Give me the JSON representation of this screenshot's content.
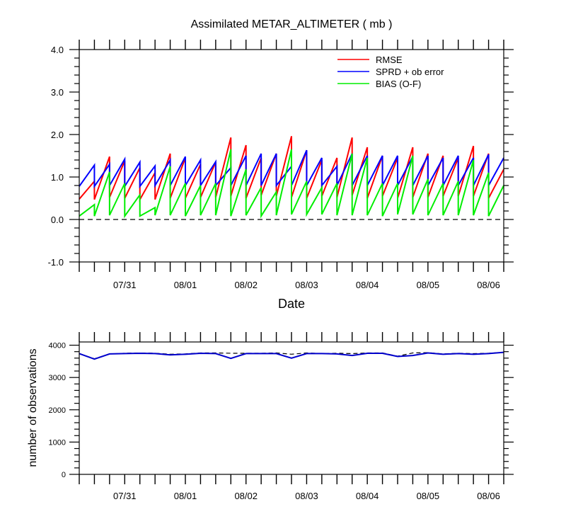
{
  "colors": {
    "rmse": "#ff0000",
    "sprd": "#0000ff",
    "bias": "#00ee00",
    "axis": "#000000",
    "dashed": "#000000",
    "obs_used": "#0000cc"
  },
  "chart_data": [
    {
      "type": "line",
      "title": "Assimilated METAR_ALTIMETER ( mb )",
      "xlabel": "Date",
      "ylabel": "",
      "ylim": [
        -1.0,
        4.0
      ],
      "yticks": [
        "-1.0",
        "0.0",
        "1.0",
        "2.0",
        "3.0",
        "4.0"
      ],
      "xticklabels": [
        "07/31",
        "08/01",
        "08/02",
        "08/03",
        "08/04",
        "08/05",
        "08/06"
      ],
      "x_start": "07/30 06Z",
      "x_step_hours": 6,
      "reference_line_y": 0.0,
      "legend_position": "top-right",
      "series": [
        {
          "name": "RMSE",
          "prior": [
            0.48,
            0.47,
            0.52,
            0.5,
            0.47,
            0.47,
            0.5,
            0.5,
            0.52,
            0.52,
            0.55,
            0.5,
            0.57,
            0.55,
            0.52,
            0.5,
            0.55,
            0.52,
            0.57,
            0.5,
            0.55,
            0.5,
            0.52,
            0.52,
            0.55,
            0.55,
            0.55,
            0.5
          ],
          "posterior": [
            0.9,
            1.48,
            1.38,
            1.22,
            1.1,
            1.55,
            1.45,
            1.3,
            1.35,
            1.93,
            1.75,
            1.45,
            1.55,
            1.96,
            1.63,
            1.4,
            1.45,
            1.93,
            1.7,
            1.5,
            1.45,
            1.7,
            1.55,
            1.5,
            1.45,
            1.73,
            1.55,
            1.18
          ]
        },
        {
          "name": "SPRD + ob error",
          "prior": [
            0.78,
            0.78,
            0.8,
            0.78,
            0.78,
            0.8,
            0.8,
            0.8,
            0.8,
            0.8,
            0.8,
            0.8,
            0.8,
            0.8,
            0.8,
            0.8,
            0.8,
            0.8,
            0.8,
            0.8,
            0.8,
            0.8,
            0.8,
            0.8,
            0.8,
            0.8,
            0.8,
            0.8
          ],
          "posterior": [
            1.28,
            1.3,
            1.42,
            1.35,
            1.26,
            1.4,
            1.48,
            1.4,
            1.36,
            1.22,
            1.5,
            1.55,
            1.55,
            1.25,
            1.63,
            1.45,
            1.25,
            1.55,
            1.5,
            1.5,
            1.5,
            1.48,
            1.5,
            1.45,
            1.5,
            1.45,
            1.53,
            1.45
          ]
        },
        {
          "name": "BIAS (O-F)",
          "prior": [
            0.08,
            0.08,
            0.1,
            0.08,
            0.08,
            0.1,
            0.1,
            0.08,
            0.1,
            0.1,
            0.08,
            0.1,
            0.08,
            0.1,
            0.12,
            0.12,
            0.12,
            0.1,
            0.1,
            0.1,
            0.08,
            0.12,
            0.12,
            0.1,
            0.1,
            0.1,
            0.1,
            0.08
          ],
          "posterior": [
            0.35,
            1.12,
            0.85,
            0.58,
            0.28,
            1.25,
            0.85,
            0.8,
            0.85,
            1.65,
            1.18,
            0.75,
            0.65,
            1.65,
            0.9,
            0.75,
            0.85,
            1.55,
            1.45,
            0.85,
            0.85,
            1.5,
            0.95,
            0.85,
            0.9,
            1.4,
            1.1,
            0.8
          ]
        }
      ]
    },
    {
      "type": "line",
      "title": "",
      "xlabel": "",
      "ylabel": "number of observations",
      "ylim": [
        0,
        4100
      ],
      "yticks": [
        "0",
        "1000",
        "2000",
        "3000",
        "4000"
      ],
      "xticklabels": [
        "07/31",
        "08/01",
        "08/02",
        "08/03",
        "08/04",
        "08/05",
        "08/06"
      ],
      "series": [
        {
          "name": "",
          "values": [
            3740,
            3570,
            3730,
            3740,
            3750,
            3740,
            3700,
            3720,
            3750,
            3740,
            3590,
            3740,
            3740,
            3740,
            3600,
            3740,
            3740,
            3730,
            3680,
            3750,
            3750,
            3650,
            3680,
            3760,
            3720,
            3740,
            3720,
            3740,
            3780
          ]
        },
        {
          "name": "",
          "style": "dashed",
          "values": [
            3740,
            3580,
            3730,
            3750,
            3760,
            3750,
            3720,
            3730,
            3760,
            3760,
            3750,
            3750,
            3750,
            3760,
            3720,
            3760,
            3740,
            3750,
            3740,
            3760,
            3760,
            3660,
            3760,
            3770,
            3730,
            3750,
            3740,
            3750,
            3780
          ]
        }
      ]
    }
  ]
}
